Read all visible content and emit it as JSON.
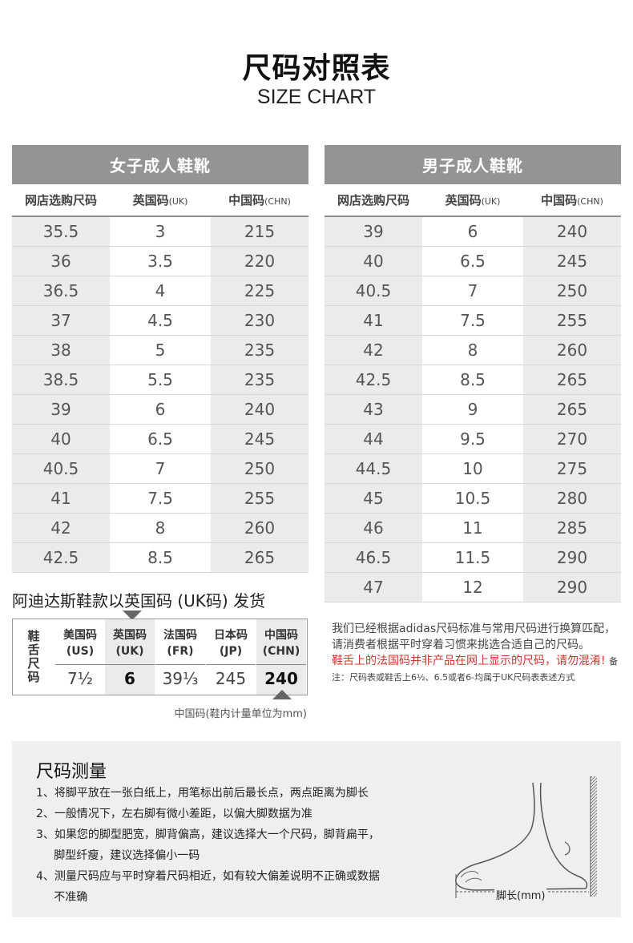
{
  "header": {
    "title": "尺码对照表",
    "subtitle": "SIZE CHART"
  },
  "women": {
    "heading": "女子成人鞋靴",
    "columns": [
      {
        "label": "网店选购尺码",
        "unit": ""
      },
      {
        "label": "英国码",
        "unit": "(UK)"
      },
      {
        "label": "中国码",
        "unit": "(CHN)"
      }
    ],
    "rows": [
      [
        "35.5",
        "3",
        "215"
      ],
      [
        "36",
        "3.5",
        "220"
      ],
      [
        "36.5",
        "4",
        "225"
      ],
      [
        "37",
        "4.5",
        "230"
      ],
      [
        "38",
        "5",
        "235"
      ],
      [
        "38.5",
        "5.5",
        "235"
      ],
      [
        "39",
        "6",
        "240"
      ],
      [
        "40",
        "6.5",
        "245"
      ],
      [
        "40.5",
        "7",
        "250"
      ],
      [
        "41",
        "7.5",
        "255"
      ],
      [
        "42",
        "8",
        "260"
      ],
      [
        "42.5",
        "8.5",
        "265"
      ]
    ]
  },
  "men": {
    "heading": "男子成人鞋靴",
    "columns": [
      {
        "label": "网店选购尺码",
        "unit": ""
      },
      {
        "label": "英国码",
        "unit": "(UK)"
      },
      {
        "label": "中国码",
        "unit": "(CHN)"
      }
    ],
    "rows": [
      [
        "39",
        "6",
        "240"
      ],
      [
        "40",
        "6.5",
        "245"
      ],
      [
        "40.5",
        "7",
        "250"
      ],
      [
        "41",
        "7.5",
        "255"
      ],
      [
        "42",
        "8",
        "260"
      ],
      [
        "42.5",
        "8.5",
        "265"
      ],
      [
        "43",
        "9",
        "265"
      ],
      [
        "44",
        "9.5",
        "270"
      ],
      [
        "44.5",
        "10",
        "275"
      ],
      [
        "45",
        "10.5",
        "280"
      ],
      [
        "46",
        "11",
        "285"
      ],
      [
        "46.5",
        "11.5",
        "290"
      ],
      [
        "47",
        "12",
        "290"
      ]
    ]
  },
  "uk_note": "阿迪达斯鞋款以英国码 (UK码) 发货",
  "example": {
    "label": "鞋舌尺码",
    "columns": [
      {
        "name": "美国码",
        "unit": "(US)",
        "value": "7½",
        "bold": false
      },
      {
        "name": "英国码",
        "unit": "(UK)",
        "value": "6",
        "bold": true
      },
      {
        "name": "法国码",
        "unit": "(FR)",
        "value": "39⅓",
        "bold": false
      },
      {
        "name": "日本码",
        "unit": "(JP)",
        "value": "245",
        "bold": false
      },
      {
        "name": "中国码",
        "unit": "(CHN)",
        "value": "240",
        "bold": true
      }
    ]
  },
  "mm_note": "中国码(鞋内计量单位为mm)",
  "info": {
    "text": "我们已经根据adidas尺码标准与常用尺码进行换算匹配，请消费者根据平时穿着习惯来挑选合适自己的尺码。",
    "warning": "鞋舌上的法国码并非产品在网上显示的尺码，请勿混淆!",
    "footnote": "备注：尺码表或鞋舌上6½、6.5或者6-均属于UK尺码表表述方式"
  },
  "measure": {
    "title": "尺码测量",
    "items": [
      "1、将脚平放在一张白纸上，用笔标出前后最长点，两点距离为脚长",
      "2、一般情况下，左右脚有微小差距，以偏大脚数据为准",
      "3、如果您的脚型肥宽，脚背偏高，建议选择大一个尺码，脚背扁平，",
      "     脚型纤瘦，建议选择偏小一码",
      "4、测量尺码应与平时穿着尺码相近，如有较大偏差说明不正确或数据",
      "     不准确"
    ],
    "foot_label": "脚长(mm)"
  },
  "colors": {
    "header_gray": "#949494",
    "stripe": "#ebebeb",
    "warning_red": "#d4342b",
    "panel_bg": "#efefef"
  },
  "icons": {
    "down_arrow": "triangle-down-icon",
    "up_arrow": "triangle-up-icon",
    "foot": "foot-illustration-icon"
  }
}
